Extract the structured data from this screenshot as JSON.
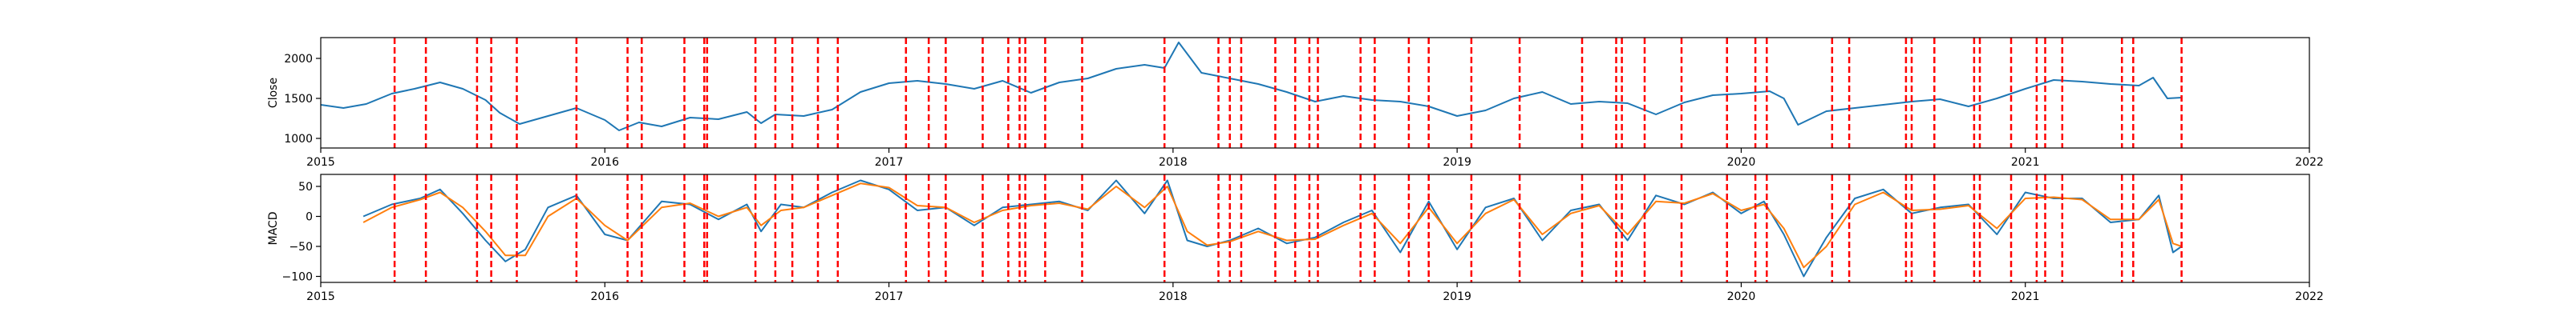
{
  "chart_data": [
    {
      "type": "line",
      "ylabel": "Close",
      "xlabel": "",
      "xlim": [
        2015.0,
        2022.0
      ],
      "ylim": [
        880,
        2260
      ],
      "x_ticks": [
        2015,
        2016,
        2017,
        2018,
        2019,
        2020,
        2021,
        2022
      ],
      "x_tick_labels": [
        "2015",
        "2016",
        "2017",
        "2018",
        "2019",
        "2020",
        "2021",
        "2022"
      ],
      "y_ticks": [
        1000,
        1500,
        2000
      ],
      "y_tick_labels": [
        "1000",
        "1500",
        "2000"
      ],
      "series": [
        {
          "color": "#1f77b4",
          "x": [
            2015.0,
            2015.08,
            2015.16,
            2015.25,
            2015.33,
            2015.42,
            2015.5,
            2015.58,
            2015.63,
            2015.7,
            2015.8,
            2015.9,
            2016.0,
            2016.05,
            2016.12,
            2016.2,
            2016.3,
            2016.4,
            2016.5,
            2016.55,
            2016.6,
            2016.7,
            2016.8,
            2016.9,
            2017.0,
            2017.1,
            2017.2,
            2017.3,
            2017.4,
            2017.5,
            2017.6,
            2017.7,
            2017.8,
            2017.9,
            2017.97,
            2018.02,
            2018.1,
            2018.2,
            2018.3,
            2018.4,
            2018.5,
            2018.6,
            2018.7,
            2018.8,
            2018.9,
            2019.0,
            2019.1,
            2019.2,
            2019.3,
            2019.4,
            2019.5,
            2019.6,
            2019.7,
            2019.8,
            2019.9,
            2020.0,
            2020.1,
            2020.15,
            2020.2,
            2020.3,
            2020.4,
            2020.5,
            2020.6,
            2020.7,
            2020.8,
            2020.9,
            2021.0,
            2021.1,
            2021.2,
            2021.3,
            2021.4,
            2021.45,
            2021.5,
            2021.55
          ],
          "y": [
            1420,
            1380,
            1430,
            1560,
            1620,
            1700,
            1620,
            1480,
            1320,
            1180,
            1280,
            1380,
            1230,
            1100,
            1200,
            1150,
            1260,
            1240,
            1330,
            1190,
            1300,
            1280,
            1360,
            1580,
            1690,
            1720,
            1680,
            1620,
            1720,
            1570,
            1700,
            1750,
            1870,
            1920,
            1880,
            2200,
            1820,
            1750,
            1680,
            1580,
            1460,
            1530,
            1480,
            1460,
            1400,
            1280,
            1350,
            1500,
            1580,
            1430,
            1460,
            1440,
            1300,
            1450,
            1540,
            1560,
            1590,
            1500,
            1170,
            1340,
            1380,
            1420,
            1460,
            1490,
            1400,
            1500,
            1620,
            1730,
            1710,
            1680,
            1660,
            1760,
            1500,
            1510
          ]
        }
      ]
    },
    {
      "type": "line",
      "ylabel": "MACD",
      "xlabel": "",
      "xlim": [
        2015.0,
        2022.0
      ],
      "ylim": [
        -110,
        70
      ],
      "x_ticks": [
        2015,
        2016,
        2017,
        2018,
        2019,
        2020,
        2021,
        2022
      ],
      "x_tick_labels": [
        "2015",
        "2016",
        "2017",
        "2018",
        "2019",
        "2020",
        "2021",
        "2022"
      ],
      "y_ticks": [
        50,
        0,
        -50,
        -100
      ],
      "y_tick_labels": [
        "50",
        "0",
        "−50",
        "−100"
      ],
      "series": [
        {
          "color": "#1f77b4",
          "x": [
            2015.15,
            2015.25,
            2015.35,
            2015.42,
            2015.5,
            2015.58,
            2015.65,
            2015.72,
            2015.8,
            2015.9,
            2016.0,
            2016.08,
            2016.2,
            2016.3,
            2016.4,
            2016.5,
            2016.55,
            2016.62,
            2016.7,
            2016.8,
            2016.9,
            2017.0,
            2017.1,
            2017.2,
            2017.3,
            2017.4,
            2017.5,
            2017.6,
            2017.7,
            2017.8,
            2017.9,
            2017.98,
            2018.05,
            2018.12,
            2018.2,
            2018.3,
            2018.4,
            2018.5,
            2018.6,
            2018.7,
            2018.8,
            2018.9,
            2019.0,
            2019.1,
            2019.2,
            2019.3,
            2019.4,
            2019.5,
            2019.6,
            2019.7,
            2019.8,
            2019.9,
            2020.0,
            2020.08,
            2020.15,
            2020.22,
            2020.3,
            2020.4,
            2020.5,
            2020.6,
            2020.7,
            2020.8,
            2020.9,
            2021.0,
            2021.1,
            2021.2,
            2021.3,
            2021.4,
            2021.47,
            2021.52,
            2021.55
          ],
          "y": [
            0,
            20,
            30,
            45,
            5,
            -40,
            -75,
            -55,
            15,
            35,
            -30,
            -40,
            25,
            20,
            -5,
            20,
            -25,
            20,
            15,
            40,
            60,
            45,
            10,
            15,
            -15,
            15,
            20,
            25,
            10,
            60,
            5,
            60,
            -40,
            -50,
            -40,
            -20,
            -45,
            -35,
            -10,
            10,
            -60,
            25,
            -55,
            15,
            30,
            -40,
            10,
            20,
            -40,
            35,
            20,
            40,
            5,
            25,
            -30,
            -100,
            -35,
            30,
            45,
            5,
            15,
            20,
            -30,
            40,
            30,
            30,
            -10,
            -5,
            35,
            -60,
            -50
          ]
        },
        {
          "color": "#ff7f0e",
          "x": [
            2015.15,
            2015.25,
            2015.35,
            2015.42,
            2015.5,
            2015.58,
            2015.65,
            2015.72,
            2015.8,
            2015.9,
            2016.0,
            2016.08,
            2016.2,
            2016.3,
            2016.4,
            2016.5,
            2016.55,
            2016.62,
            2016.7,
            2016.8,
            2016.9,
            2017.0,
            2017.1,
            2017.2,
            2017.3,
            2017.4,
            2017.5,
            2017.6,
            2017.7,
            2017.8,
            2017.9,
            2017.98,
            2018.05,
            2018.12,
            2018.2,
            2018.3,
            2018.4,
            2018.5,
            2018.6,
            2018.7,
            2018.8,
            2018.9,
            2019.0,
            2019.1,
            2019.2,
            2019.3,
            2019.4,
            2019.5,
            2019.6,
            2019.7,
            2019.8,
            2019.9,
            2020.0,
            2020.08,
            2020.15,
            2020.22,
            2020.3,
            2020.4,
            2020.5,
            2020.6,
            2020.7,
            2020.8,
            2020.9,
            2021.0,
            2021.1,
            2021.2,
            2021.3,
            2021.4,
            2021.47,
            2021.52,
            2021.55
          ],
          "y": [
            -10,
            15,
            28,
            40,
            15,
            -25,
            -65,
            -65,
            0,
            30,
            -15,
            -40,
            15,
            22,
            0,
            15,
            -15,
            10,
            15,
            35,
            55,
            48,
            18,
            15,
            -10,
            10,
            18,
            22,
            12,
            50,
            15,
            50,
            -25,
            -48,
            -42,
            -25,
            -40,
            -38,
            -15,
            5,
            -45,
            15,
            -45,
            5,
            28,
            -30,
            5,
            18,
            -30,
            25,
            22,
            38,
            10,
            20,
            -20,
            -85,
            -50,
            20,
            40,
            10,
            12,
            18,
            -20,
            30,
            32,
            28,
            -5,
            -5,
            28,
            -45,
            -50
          ]
        }
      ]
    }
  ],
  "vlines": [
    2015.26,
    2015.37,
    2015.55,
    2015.6,
    2015.69,
    2015.9,
    2016.08,
    2016.13,
    2016.28,
    2016.35,
    2016.36,
    2016.53,
    2016.6,
    2016.66,
    2016.75,
    2016.82,
    2017.06,
    2017.14,
    2017.2,
    2017.33,
    2017.42,
    2017.46,
    2017.48,
    2017.55,
    2017.68,
    2017.97,
    2018.16,
    2018.2,
    2018.24,
    2018.36,
    2018.43,
    2018.48,
    2018.51,
    2018.66,
    2018.71,
    2018.83,
    2018.9,
    2019.05,
    2019.22,
    2019.44,
    2019.56,
    2019.58,
    2019.66,
    2019.79,
    2019.95,
    2020.05,
    2020.09,
    2020.32,
    2020.38,
    2020.58,
    2020.6,
    2020.68,
    2020.82,
    2020.84,
    2020.95,
    2021.04,
    2021.07,
    2021.13,
    2021.34,
    2021.38,
    2021.55
  ],
  "vline_color": "#ff0000"
}
